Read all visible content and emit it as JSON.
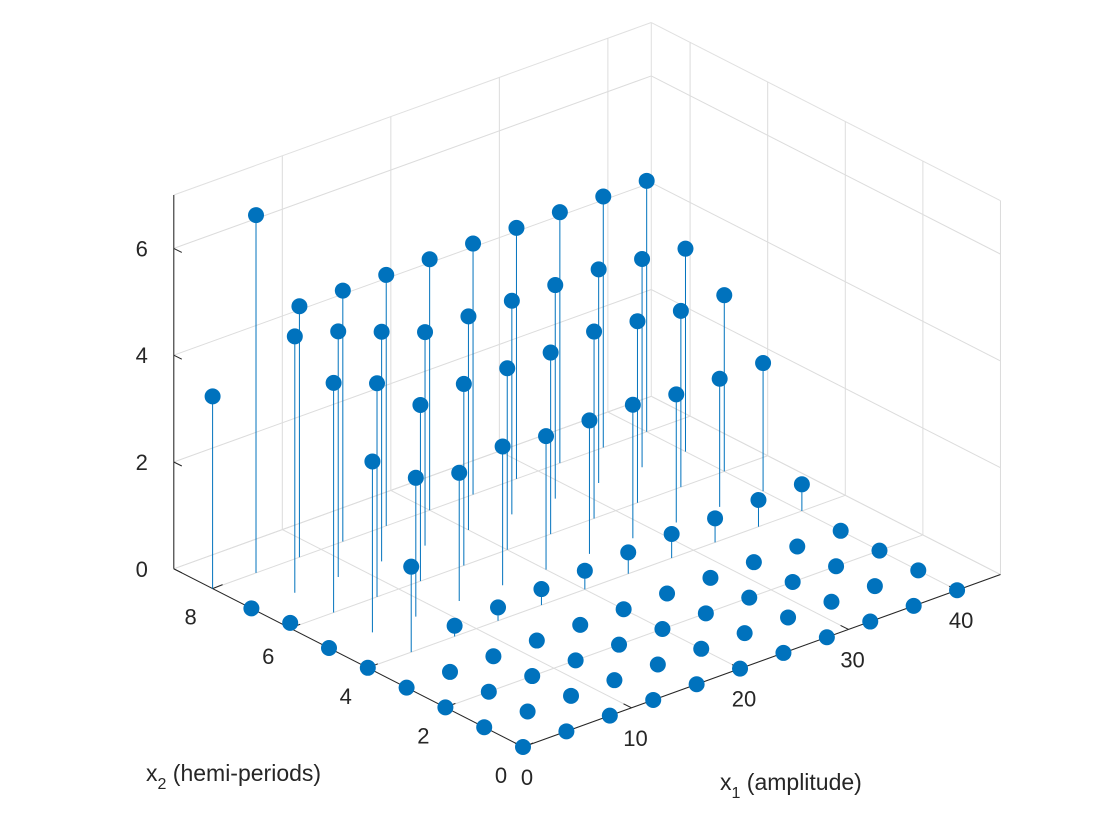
{
  "chart_data": {
    "type": "stem3",
    "xlabel": {
      "base": "x",
      "sub": "1",
      "text": " (amplitude)"
    },
    "ylabel": {
      "base": "x",
      "sub": "2",
      "text": " (hemi-periods)"
    },
    "zlabel": "",
    "xlim": [
      0,
      44
    ],
    "ylim": [
      0,
      9
    ],
    "zlim": [
      0,
      7
    ],
    "xticks": [
      "0",
      "10",
      "20",
      "30",
      "40"
    ],
    "yticks": [
      "0",
      "2",
      "4",
      "6",
      "8"
    ],
    "zticks": [
      "0",
      "2",
      "4",
      "6"
    ],
    "grid": true,
    "marker_color": "#0072BD",
    "x_grid": [
      0,
      4,
      8,
      12,
      16,
      20,
      24,
      28,
      32,
      36,
      40
    ],
    "y_grid": [
      0,
      1,
      2,
      3,
      4,
      5,
      6,
      7,
      8
    ],
    "z": [
      [
        0.0,
        0.0,
        0.0,
        0.0,
        0.0,
        0.0,
        0.0,
        0.0,
        0.0,
        0.0,
        0.0
      ],
      [
        0.0,
        0.0,
        0.0,
        0.0,
        0.0,
        0.0,
        0.0,
        0.0,
        0.0,
        0.0,
        0.0
      ],
      [
        0.0,
        0.0,
        0.0,
        0.0,
        0.0,
        0.0,
        0.0,
        0.0,
        0.0,
        0.0,
        0.0
      ],
      [
        0.0,
        0.0,
        0.0,
        0.0,
        0.0,
        0.0,
        0.0,
        0.0,
        0.0,
        0.0,
        0.0
      ],
      [
        0.0,
        1.6,
        0.2,
        0.25,
        0.3,
        0.35,
        0.4,
        0.45,
        0.45,
        0.5,
        0.5
      ],
      [
        0.0,
        3.2,
        2.6,
        2.4,
        2.6,
        2.5,
        2.5,
        2.5,
        2.4,
        2.4,
        2.4
      ],
      [
        0.1,
        4.3,
        4.0,
        3.3,
        3.4,
        3.4,
        3.4,
        3.5,
        3.4,
        3.3,
        3.3
      ],
      [
        0.0,
        4.8,
        4.6,
        4.3,
        4.0,
        4.0,
        4.0,
        4.0,
        4.0,
        3.9,
        3.8
      ],
      [
        3.6,
        6.7,
        4.7,
        4.7,
        4.7,
        4.7,
        4.7,
        4.7,
        4.7,
        4.7,
        4.7
      ]
    ]
  }
}
